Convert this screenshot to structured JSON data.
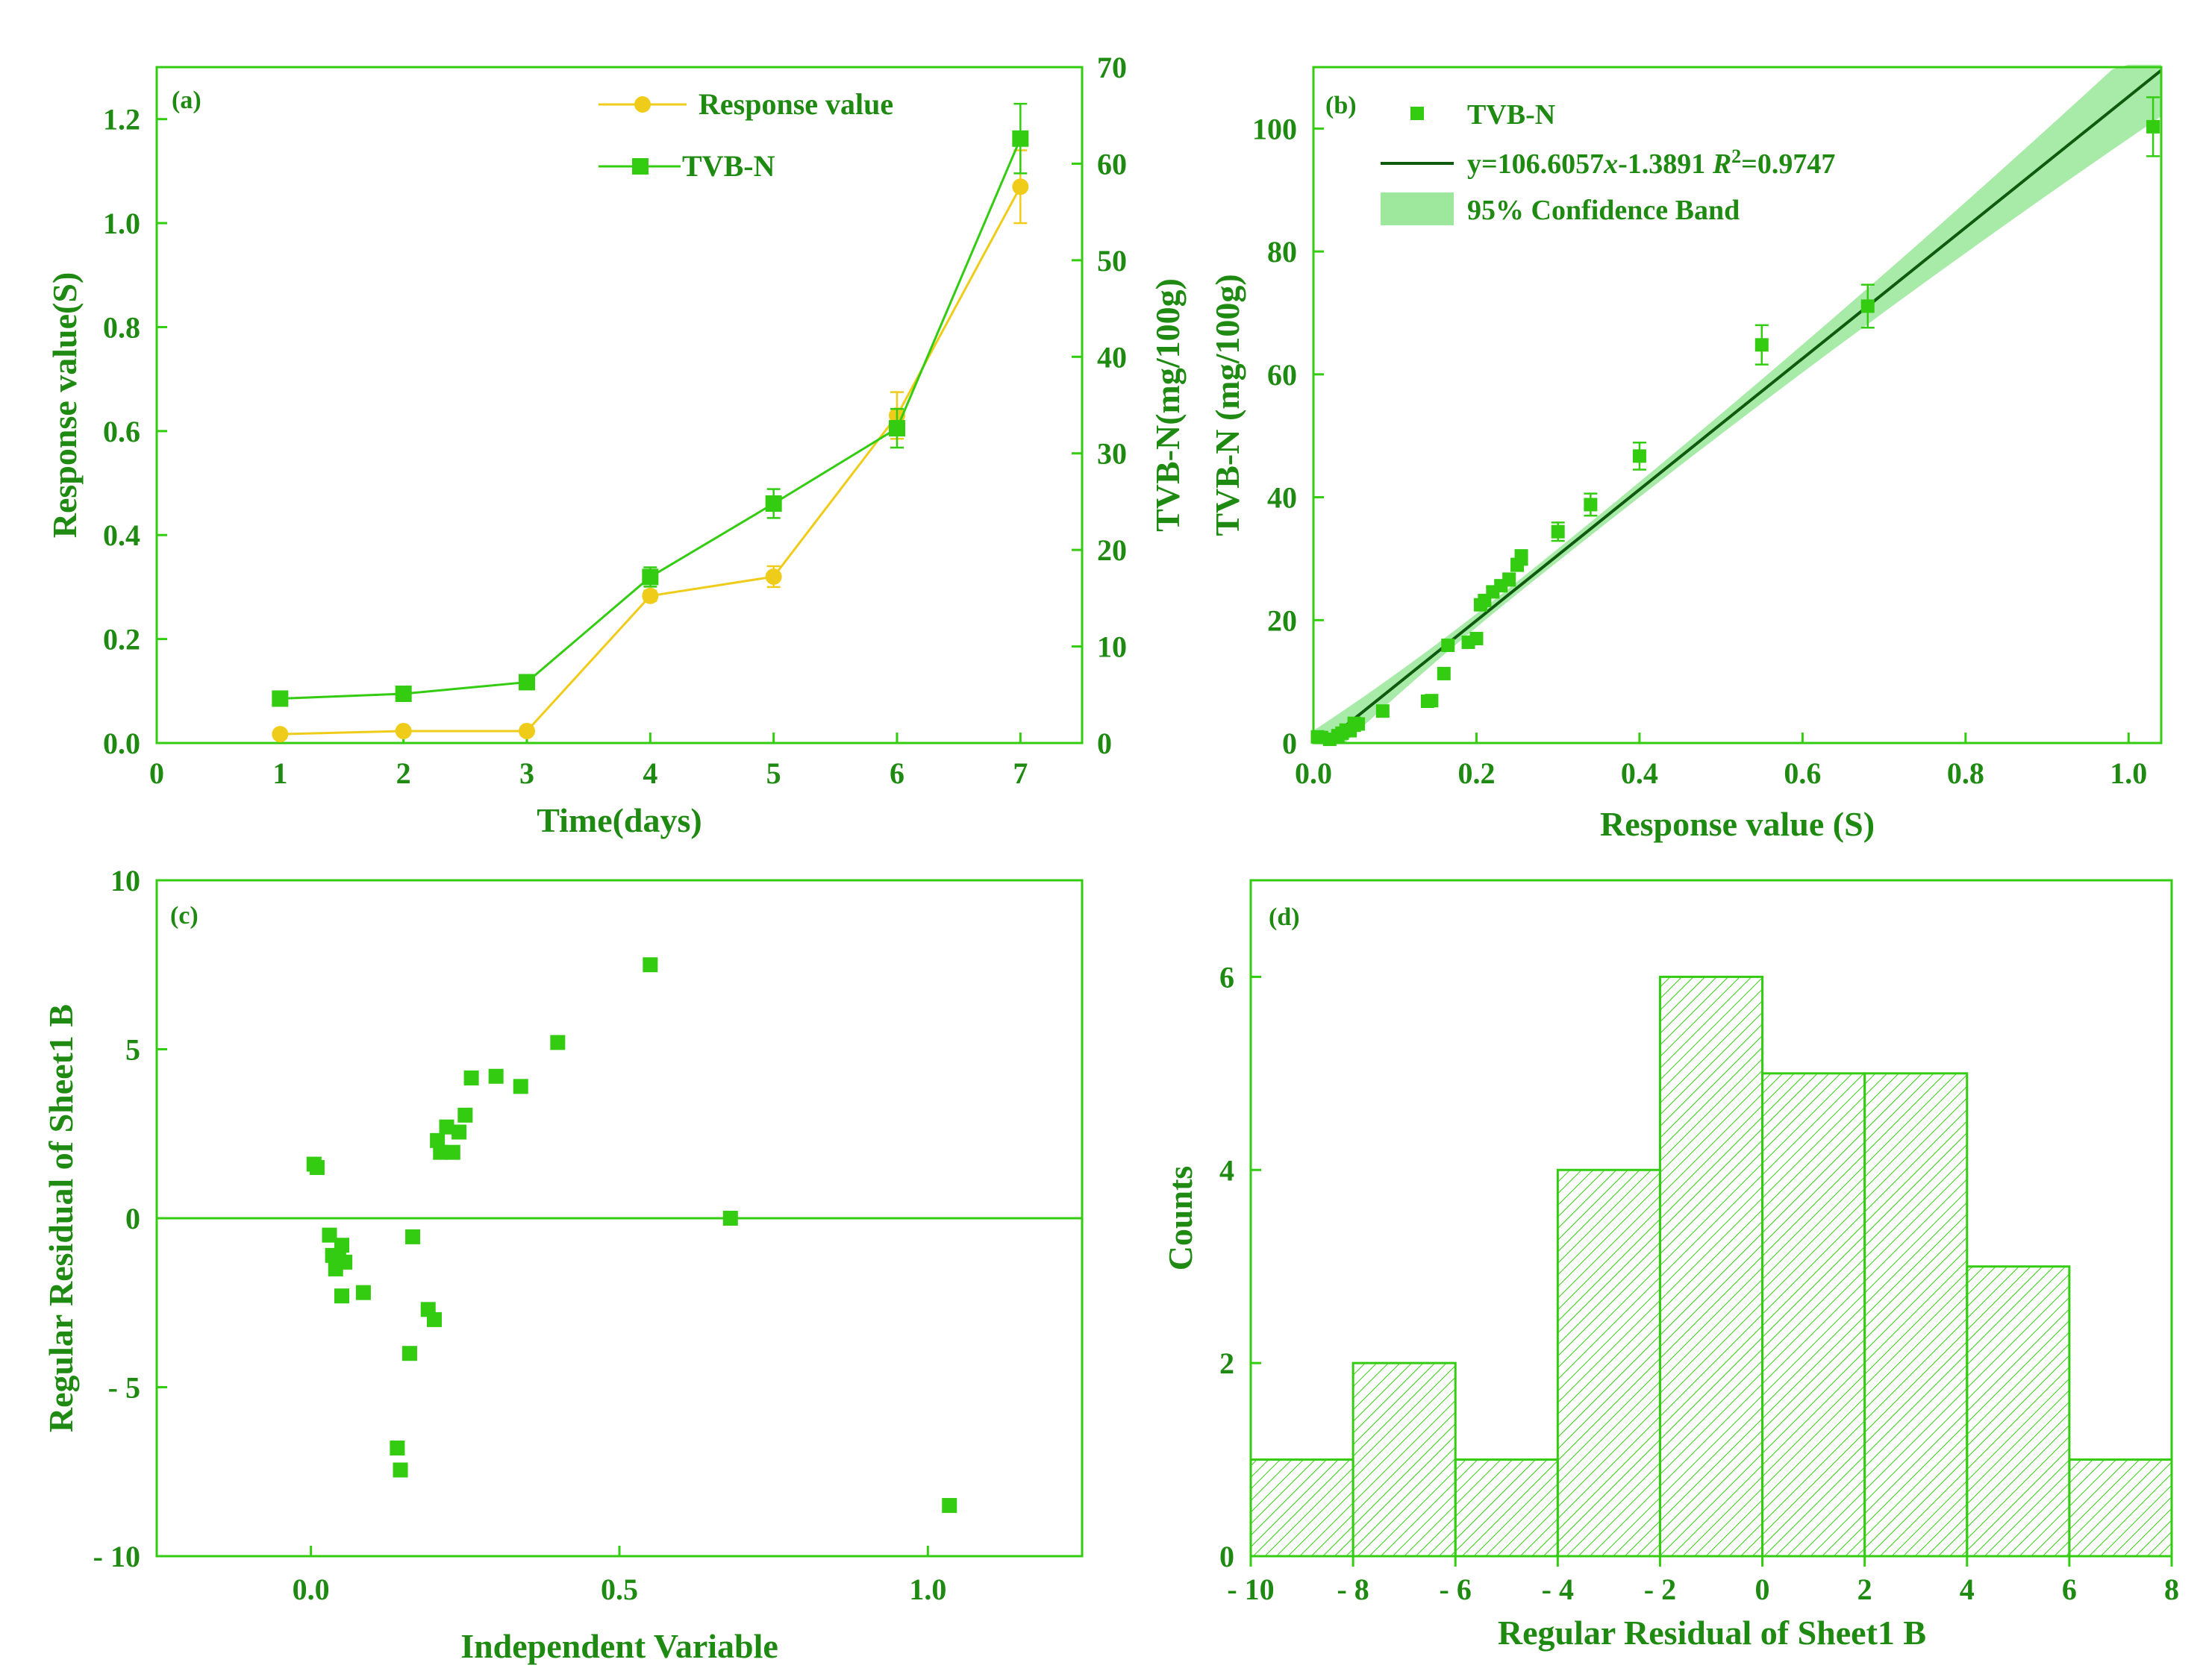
{
  "colors": {
    "green": "#33cc11",
    "green_text": "#1f8a12",
    "dark_green": "#0e5a0e",
    "band": "#9ee89e",
    "yellow": "#f0cc1a"
  },
  "chart_data": [
    {
      "id": "a",
      "type": "line",
      "panel_label": "(a)",
      "xlabel": "Time(days)",
      "ylabel": "Response value(S)",
      "y2label": "TVB-N(mg/100g)",
      "xlim": [
        0,
        7.5
      ],
      "ylim": [
        0,
        1.3
      ],
      "y2lim": [
        0,
        70
      ],
      "x_ticks": [
        "0",
        "1",
        "2",
        "3",
        "4",
        "5",
        "6",
        "7"
      ],
      "y_ticks": [
        "0.0",
        "0.2",
        "0.4",
        "0.6",
        "0.8",
        "1.0",
        "1.2"
      ],
      "y2_ticks": [
        "0",
        "10",
        "20",
        "30",
        "40",
        "50",
        "60",
        "70"
      ],
      "legend": [
        "Response value",
        "TVB-N"
      ],
      "series": [
        {
          "name": "Response value",
          "axis": "left",
          "x": [
            1,
            2,
            3,
            4,
            5,
            6,
            7
          ],
          "values": [
            0.017,
            0.023,
            0.023,
            0.283,
            0.32,
            0.63,
            1.07
          ],
          "errors": [
            0,
            0,
            0,
            0.01,
            0.02,
            0.045,
            0.07
          ]
        },
        {
          "name": "TVB-N",
          "axis": "right",
          "x": [
            1,
            2,
            3,
            4,
            5,
            6,
            7
          ],
          "values": [
            4.6,
            5.1,
            6.3,
            17.2,
            24.8,
            32.6,
            62.6
          ],
          "errors": [
            0,
            0,
            0,
            1.0,
            1.5,
            2.0,
            3.6
          ]
        }
      ]
    },
    {
      "id": "b",
      "type": "scatter",
      "panel_label": "(b)",
      "xlabel": "Response value (S)",
      "ylabel": "TVB-N (mg/100g)",
      "xlim": [
        0,
        1.04
      ],
      "ylim": [
        0,
        110
      ],
      "x_ticks": [
        "0.0",
        "0.2",
        "0.4",
        "0.6",
        "0.8",
        "1.0"
      ],
      "y_ticks": [
        "0",
        "20",
        "40",
        "60",
        "80",
        "100"
      ],
      "legend": [
        "TVB-N",
        "y=106.6057x-1.3891 R²=0.9747",
        "95% Confidence Band"
      ],
      "fit_label": {
        "prefix": "y=106.6057",
        "var": "x",
        "mid": "-1.3891 ",
        "r": "R",
        "sup": "2",
        "suffix": "=0.9747"
      },
      "fit": {
        "slope": 106.6057,
        "intercept": -1.3891,
        "r2": 0.9747
      },
      "points": {
        "x": [
          0.005,
          0.01,
          0.02,
          0.03,
          0.035,
          0.04,
          0.045,
          0.05,
          0.05,
          0.055,
          0.085,
          0.14,
          0.145,
          0.16,
          0.165,
          0.19,
          0.2,
          0.205,
          0.21,
          0.22,
          0.23,
          0.24,
          0.25,
          0.255,
          0.3,
          0.34,
          0.4,
          0.55,
          0.68,
          1.03
        ],
        "y": [
          1.0,
          0.9,
          0.6,
          1.2,
          1.6,
          2.1,
          2.0,
          3.2,
          2.9,
          3.1,
          5.2,
          6.8,
          6.9,
          11.3,
          15.9,
          16.4,
          17.0,
          22.5,
          23.2,
          24.6,
          25.6,
          26.6,
          29.0,
          30.2,
          34.4,
          38.8,
          46.7,
          64.8,
          71.1,
          100.3
        ],
        "errors": [
          0,
          0,
          0,
          0,
          0,
          0,
          0,
          0,
          0,
          0,
          0,
          0,
          0,
          0,
          0,
          0,
          0,
          0.8,
          0.8,
          0.8,
          0.8,
          1,
          1,
          1.2,
          1.5,
          1.8,
          2.2,
          3.2,
          3.5,
          4.8
        ]
      },
      "band_halfwidth": [
        3.4,
        1.0,
        7.5
      ]
    },
    {
      "id": "c",
      "type": "scatter",
      "panel_label": "(c)",
      "xlabel": "Independent Variable",
      "ylabel": "Regular Residual of Sheet1 B",
      "xlim": [
        -0.25,
        1.25
      ],
      "ylim": [
        -10,
        10
      ],
      "x_ticks": [
        "0.0",
        "0.5",
        "1.0"
      ],
      "y_ticks": [
        "- 10",
        "- 5",
        "0",
        "5",
        "10"
      ],
      "points": {
        "x": [
          0.005,
          0.01,
          0.03,
          0.035,
          0.04,
          0.045,
          0.05,
          0.05,
          0.055,
          0.085,
          0.14,
          0.145,
          0.16,
          0.165,
          0.19,
          0.2,
          0.205,
          0.21,
          0.22,
          0.23,
          0.24,
          0.25,
          0.26,
          0.3,
          0.34,
          0.4,
          0.55,
          0.68,
          1.035
        ],
        "y": [
          1.6,
          1.5,
          -0.5,
          -1.1,
          -1.5,
          -1.2,
          -0.8,
          -2.3,
          -1.3,
          -2.2,
          -6.8,
          -7.45,
          -4.0,
          -0.55,
          -2.7,
          -3.0,
          2.3,
          1.95,
          2.7,
          1.95,
          2.55,
          3.05,
          4.15,
          4.2,
          3.9,
          5.2,
          7.5,
          0.0,
          -8.5
        ]
      }
    },
    {
      "id": "d",
      "type": "bar",
      "panel_label": "(d)",
      "xlabel": "Regular Residual of Sheet1 B",
      "ylabel": "Counts",
      "xlim": [
        -10,
        8
      ],
      "ylim": [
        0,
        7
      ],
      "x_ticks": [
        "- 10",
        "- 8",
        "- 6",
        "- 4",
        "- 2",
        "0",
        "2",
        "4",
        "6",
        "8"
      ],
      "y_ticks": [
        "0",
        "2",
        "4",
        "6"
      ],
      "bins": [
        [
          -10,
          -8
        ],
        [
          -8,
          -6
        ],
        [
          -6,
          -4
        ],
        [
          -4,
          -2
        ],
        [
          -2,
          0
        ],
        [
          0,
          2
        ],
        [
          2,
          4
        ],
        [
          4,
          6
        ],
        [
          6,
          8
        ]
      ],
      "values": [
        1,
        2,
        1,
        4,
        6,
        5,
        5,
        3,
        1
      ]
    }
  ]
}
